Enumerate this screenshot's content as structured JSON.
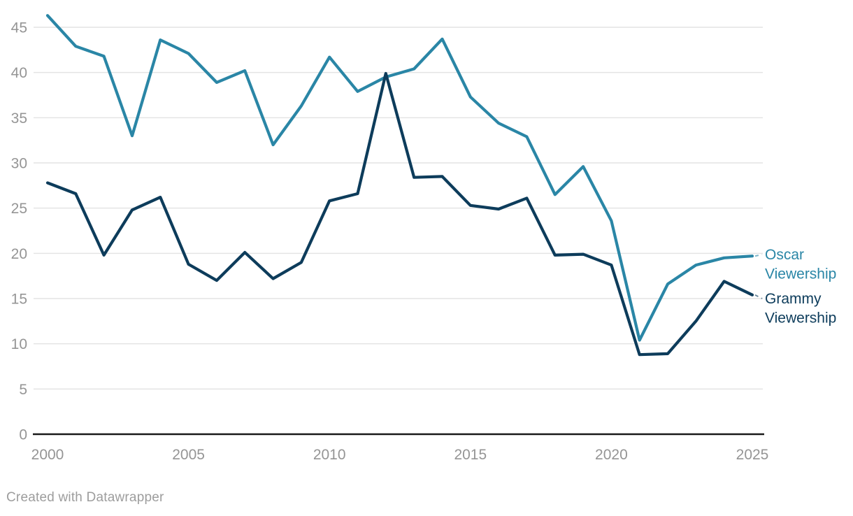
{
  "chart_data": {
    "type": "line",
    "x": [
      2000,
      2001,
      2002,
      2003,
      2004,
      2005,
      2006,
      2007,
      2008,
      2009,
      2010,
      2011,
      2012,
      2013,
      2014,
      2015,
      2016,
      2017,
      2018,
      2019,
      2020,
      2021,
      2022,
      2023,
      2024,
      2025
    ],
    "series": [
      {
        "name": "Oscar Viewership",
        "color": "#2a86a6",
        "values": [
          46.3,
          42.9,
          41.8,
          33.0,
          43.6,
          42.1,
          38.9,
          40.2,
          32.0,
          36.3,
          41.7,
          37.9,
          39.5,
          40.4,
          43.7,
          37.3,
          34.4,
          32.9,
          26.5,
          29.6,
          23.6,
          10.4,
          16.6,
          18.7,
          19.5,
          19.7
        ]
      },
      {
        "name": "Grammy Viewership",
        "color": "#0d3c5b",
        "values": [
          27.8,
          26.6,
          19.8,
          24.8,
          26.2,
          18.8,
          17.0,
          20.1,
          17.2,
          19.0,
          25.8,
          26.6,
          39.9,
          28.4,
          28.5,
          25.3,
          24.9,
          26.1,
          19.8,
          19.9,
          18.7,
          8.8,
          8.9,
          12.5,
          16.9,
          15.4
        ]
      }
    ],
    "title": "",
    "xlabel": "",
    "ylabel": "",
    "yticks": [
      0,
      5,
      10,
      15,
      20,
      25,
      30,
      35,
      40,
      45
    ],
    "xticks": [
      2000,
      2005,
      2010,
      2015,
      2020,
      2025
    ],
    "ylim": [
      0,
      47.6
    ],
    "xlim": [
      2000,
      2025
    ],
    "grid": "horizontal-only",
    "legend_position": "end-labels-right"
  },
  "footer": {
    "credit": "Created with Datawrapper"
  }
}
